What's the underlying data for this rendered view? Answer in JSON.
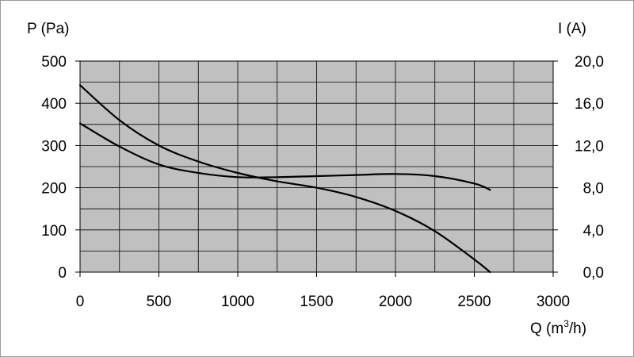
{
  "chart_data": {
    "type": "line",
    "title": "",
    "xlabel": "Q (m3/h)",
    "xlabel_main": "Q (m",
    "xlabel_sup": "3",
    "xlabel_tail": "/h)",
    "ylabel_left": "P (Pa)",
    "ylabel_right": "I (A)",
    "xlim": [
      0,
      3000
    ],
    "ylim_left": [
      0,
      500
    ],
    "ylim_right": [
      0,
      20
    ],
    "x_ticks": [
      "0",
      "500",
      "1000",
      "1500",
      "2000",
      "2500",
      "3000"
    ],
    "y_left_ticks": [
      "0",
      "100",
      "200",
      "300",
      "400",
      "500"
    ],
    "y_right_ticks": [
      "0,0",
      "4,0",
      "8,0",
      "12,0",
      "16,0",
      "20,0"
    ],
    "grid": true,
    "plot_background": "#c0c0c0",
    "line_color": "#000000",
    "series": [
      {
        "axis": "left",
        "x": [
          0,
          250,
          500,
          750,
          1000,
          1250,
          1500,
          1750,
          2000,
          2250,
          2500,
          2600
        ],
        "y": [
          443,
          360,
          300,
          262,
          235,
          215,
          200,
          178,
          145,
          97,
          30,
          0
        ]
      },
      {
        "axis": "right",
        "x": [
          0,
          250,
          500,
          750,
          1000,
          1250,
          1500,
          1750,
          2000,
          2250,
          2500,
          2600
        ],
        "y": [
          14.1,
          11.9,
          10.2,
          9.4,
          9.0,
          9.0,
          9.1,
          9.2,
          9.3,
          9.1,
          8.4,
          7.8
        ]
      }
    ]
  }
}
